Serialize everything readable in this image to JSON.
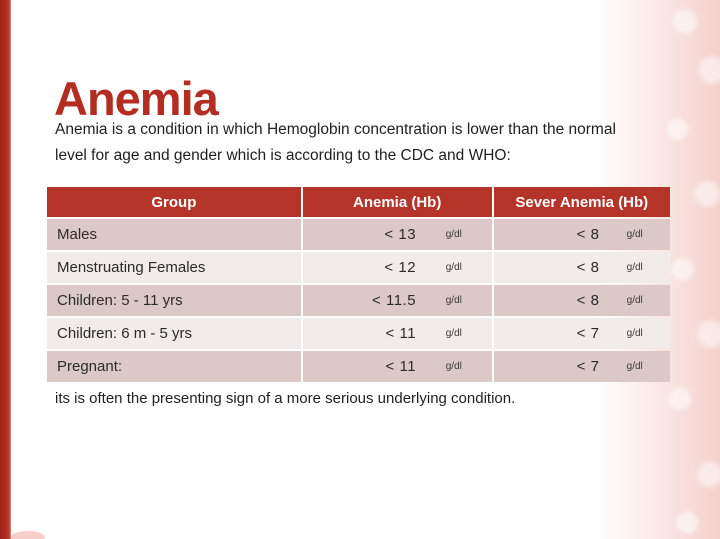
{
  "slide": {
    "title": "Anemia",
    "description_line1": "Anemia is a condition in which Hemoglobin concentration is lower than the normal",
    "description_line2": "level for age and gender which is according to the CDC and WHO:",
    "footer": "its is often the presenting sign of a more serious underlying condition."
  },
  "table": {
    "headers": [
      "Group",
      "Anemia (Hb)",
      "Sever Anemia (Hb)"
    ],
    "unit": "g/dl",
    "rows": [
      {
        "group": "Males",
        "anemia": "< 13",
        "severe": "< 8"
      },
      {
        "group": "Menstruating Females",
        "anemia": "< 12",
        "severe": "< 8"
      },
      {
        "group": "Children: 5 - 11 yrs",
        "anemia": "< 11.5",
        "severe": "< 8"
      },
      {
        "group": "Children: 6 m - 5 yrs",
        "anemia": "< 11",
        "severe": "< 7"
      },
      {
        "group": "Pregnant:",
        "anemia": "< 11",
        "severe": "< 7"
      }
    ]
  },
  "colors": {
    "accent_red": "#b32b1f",
    "header_red": "#b4342a",
    "title_red": "#b42d22",
    "row_dark_pink": "#dcc8c6",
    "row_light_pink": "#f1ebe9",
    "texture_pink": "#f4d1cb",
    "text_dark": "#1f1f1f"
  }
}
